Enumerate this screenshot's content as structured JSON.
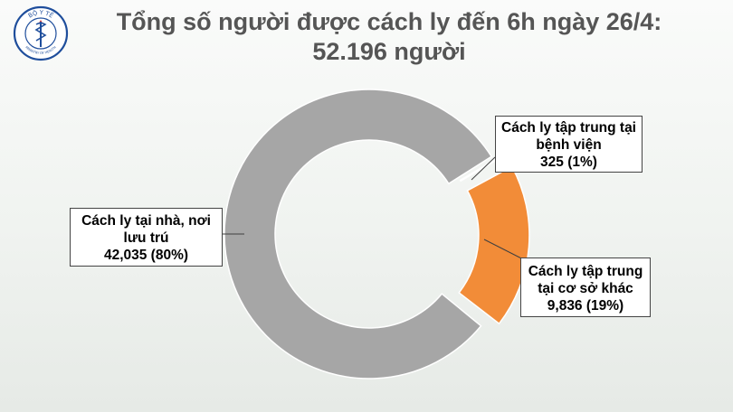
{
  "title": {
    "line1": "Tổng số người được cách ly đến 6h ngày 26/4:",
    "line2": "52.196 người"
  },
  "logo": {
    "top_text": "BỘ Y TẾ",
    "bottom_text": "MINISTRY OF HEALTH",
    "icon": "ministry-of-health-seal"
  },
  "chart_data": {
    "type": "pie",
    "variant": "donut",
    "total": 52196,
    "slices": [
      {
        "label": "Cách ly tại nhà, nơi lưu trú",
        "value": 42035,
        "value_text": "42,035",
        "percent_text": "(80%)",
        "color": "#a6a6a6"
      },
      {
        "label": "Cách ly tập trung tại bệnh viện",
        "value": 325,
        "value_text": "325",
        "percent_text": "(1%)",
        "color": "#4472c4"
      },
      {
        "label": "Cách ly tập trung tại cơ sở khác",
        "value": 9836,
        "value_text": "9,836",
        "percent_text": "(19%)",
        "color": "#f28c38"
      }
    ]
  },
  "callouts": {
    "home": {
      "line1": "Cách ly tại nhà, nơi",
      "line2": "lưu trú",
      "line3": "42,035  (80%)"
    },
    "hospital": {
      "line1": "Cách ly tập trung tại",
      "line2": "bệnh viện",
      "line3": "325  (1%)"
    },
    "facility": {
      "line1": "Cách ly tập trung",
      "line2": "tại cơ sở khác",
      "line3": "9,836  (19%)"
    }
  }
}
